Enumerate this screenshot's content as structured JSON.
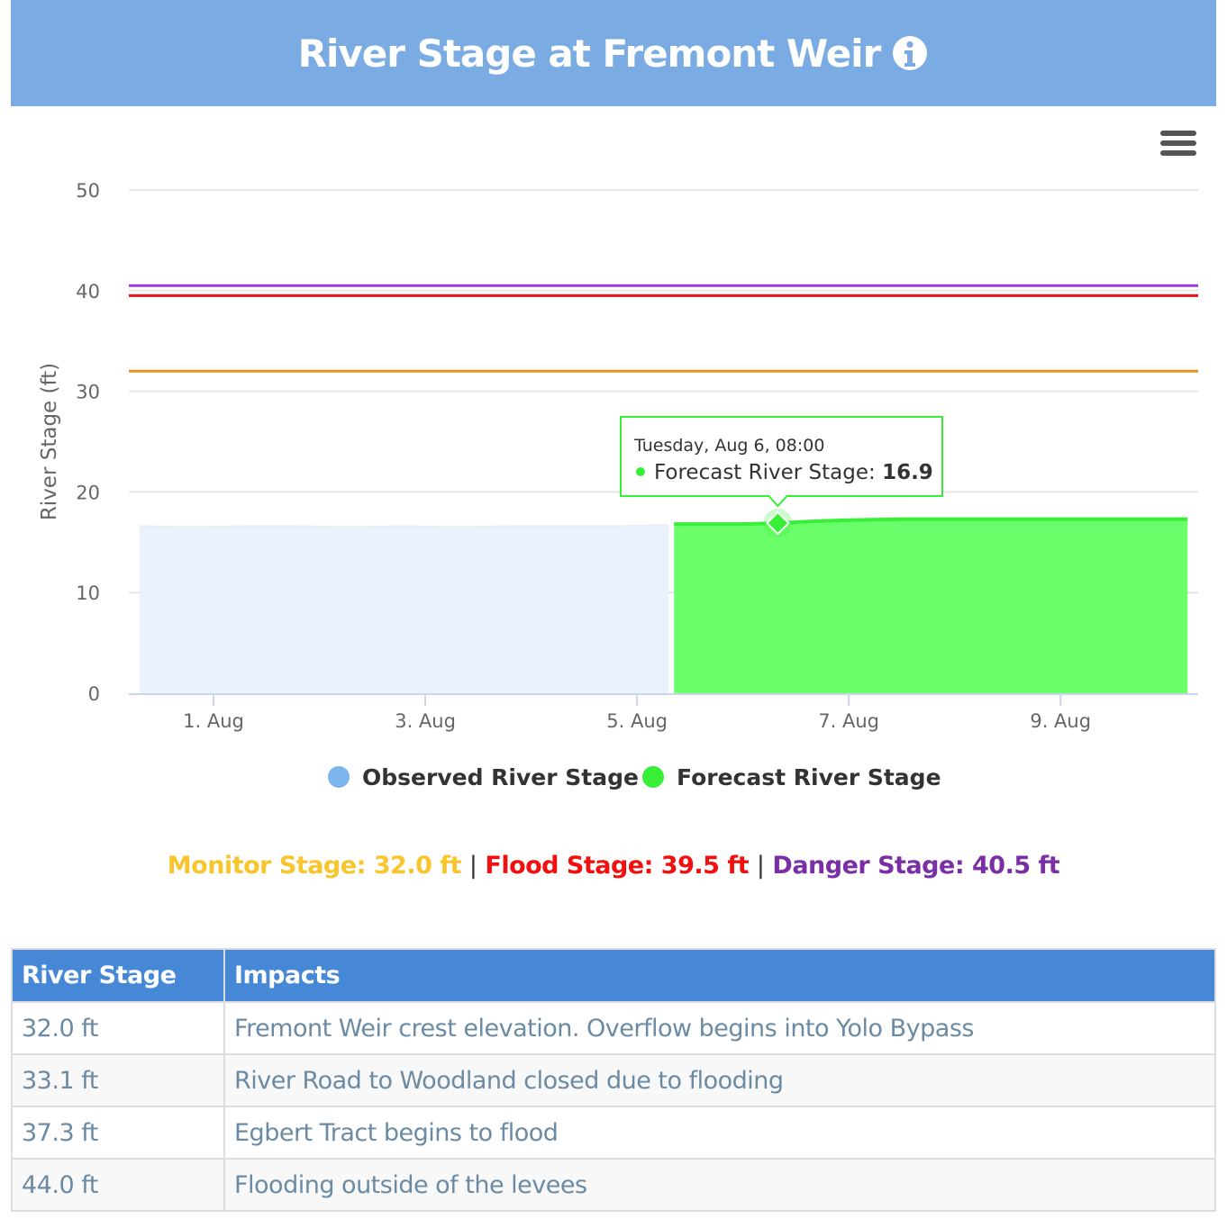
{
  "header": {
    "title": "River Stage at Fremont Weir",
    "info_icon": "info-circle-icon"
  },
  "menu_icon": "hamburger-menu-icon",
  "chart_data": {
    "type": "area",
    "ylabel": "River Stage (ft)",
    "xlabel": "",
    "ylim": [
      0,
      50
    ],
    "y_ticks": [
      0,
      10,
      20,
      30,
      40,
      50
    ],
    "x_tick_labels": [
      "1. Aug",
      "3. Aug",
      "5. Aug",
      "7. Aug",
      "9. Aug"
    ],
    "x_range_days": [
      30.2,
      40.3
    ],
    "x_tick_days": [
      31,
      33,
      35,
      37,
      39
    ],
    "grid": true,
    "legend_placement": "bottom-center",
    "series": [
      {
        "name": "Observed River Stage",
        "color": "#7cb5ec",
        "fill": "#eaf2fb",
        "x": [
          30.3,
          30.8,
          31.3,
          31.8,
          32.3,
          32.8,
          33.3,
          33.8,
          34.3,
          34.8,
          35.3
        ],
        "values": [
          16.6,
          16.5,
          16.6,
          16.6,
          16.5,
          16.6,
          16.5,
          16.6,
          16.6,
          16.6,
          16.7
        ]
      },
      {
        "name": "Forecast River Stage",
        "color": "#37ef37",
        "fill": "#6bfe6b",
        "x": [
          35.35,
          36.0,
          36.33,
          36.7,
          37.0,
          37.5,
          38.0,
          39.0,
          40.2
        ],
        "values": [
          16.8,
          16.8,
          16.9,
          17.1,
          17.2,
          17.3,
          17.3,
          17.3,
          17.3
        ]
      }
    ],
    "thresholds": [
      {
        "name": "Monitor Stage",
        "value": 32.0,
        "color": "#e8921d"
      },
      {
        "name": "Flood Stage",
        "value": 39.5,
        "color": "#f20f0f"
      },
      {
        "name": "Danger Stage",
        "value": 40.5,
        "color": "#9a3cdb"
      }
    ],
    "tooltip": {
      "date": "Tuesday, Aug 6, 08:00",
      "series": "Forecast River Stage",
      "value": "16.9",
      "x": 36.33,
      "y": 16.9
    }
  },
  "stages": {
    "monitor": "Monitor Stage: 32.0 ft",
    "flood": "Flood Stage: 39.5 ft",
    "danger": "Danger Stage: 40.5 ft",
    "separator": "|"
  },
  "impacts_table": {
    "headers": {
      "stage": "River Stage",
      "impact": "Impacts"
    },
    "rows": [
      {
        "stage": "32.0 ft",
        "impact": "Fremont Weir crest elevation. Overflow begins into Yolo Bypass"
      },
      {
        "stage": "33.1 ft",
        "impact": "River Road to Woodland closed due to flooding"
      },
      {
        "stage": "37.3 ft",
        "impact": "Egbert Tract begins to flood"
      },
      {
        "stage": "44.0 ft",
        "impact": "Flooding outside of the levees"
      }
    ]
  }
}
